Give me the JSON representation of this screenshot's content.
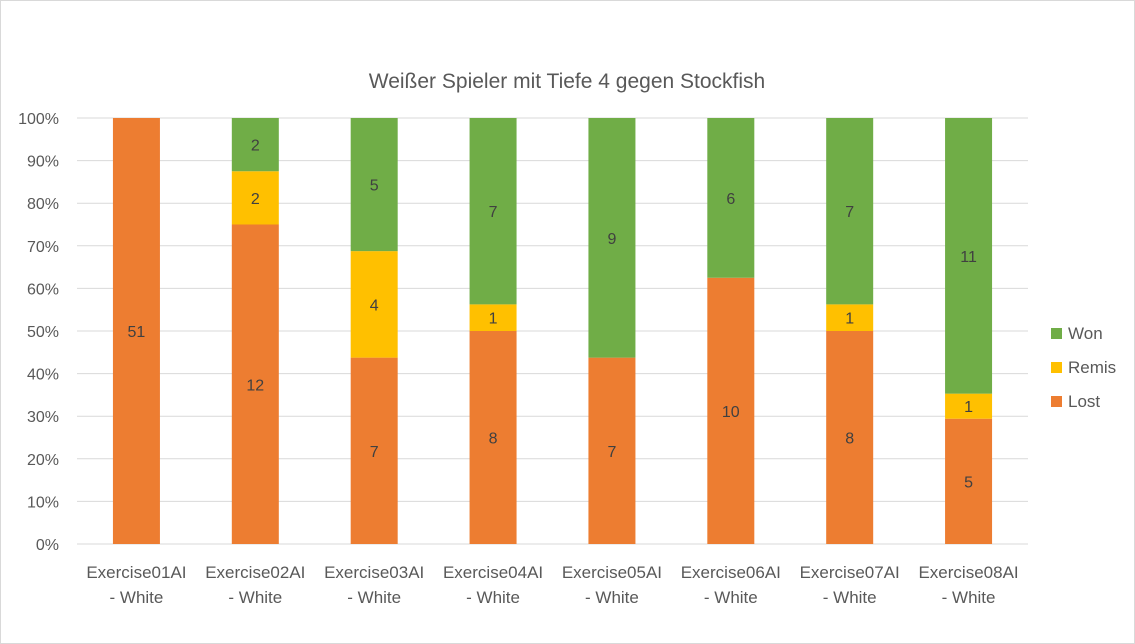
{
  "chart_data": {
    "type": "bar",
    "stacked": "percent",
    "title": "Weißer Spieler mit Tiefe 4 gegen Stockfish",
    "xlabel": "",
    "ylabel": "",
    "ylim": [
      0,
      100
    ],
    "y_ticks": [
      "0%",
      "10%",
      "20%",
      "30%",
      "40%",
      "50%",
      "60%",
      "70%",
      "80%",
      "90%",
      "100%"
    ],
    "grid": true,
    "legend_position": "right",
    "categories": [
      [
        "Exercise01AI",
        "- White"
      ],
      [
        "Exercise02AI",
        "- White"
      ],
      [
        "Exercise03AI",
        "- White"
      ],
      [
        "Exercise04AI",
        "- White"
      ],
      [
        "Exercise05AI",
        "- White"
      ],
      [
        "Exercise06AI",
        "- White"
      ],
      [
        "Exercise07AI",
        "- White"
      ],
      [
        "Exercise08AI",
        "- White"
      ]
    ],
    "series": [
      {
        "name": "Lost",
        "color": "#ed7d31",
        "values": [
          51,
          12,
          7,
          8,
          7,
          10,
          8,
          5
        ]
      },
      {
        "name": "Remis",
        "color": "#ffc000",
        "values": [
          0,
          2,
          4,
          1,
          0,
          0,
          1,
          1
        ]
      },
      {
        "name": "Won",
        "color": "#70ad47",
        "values": [
          0,
          2,
          5,
          7,
          9,
          6,
          7,
          11
        ]
      }
    ],
    "legend_order": [
      "Won",
      "Remis",
      "Lost"
    ]
  }
}
